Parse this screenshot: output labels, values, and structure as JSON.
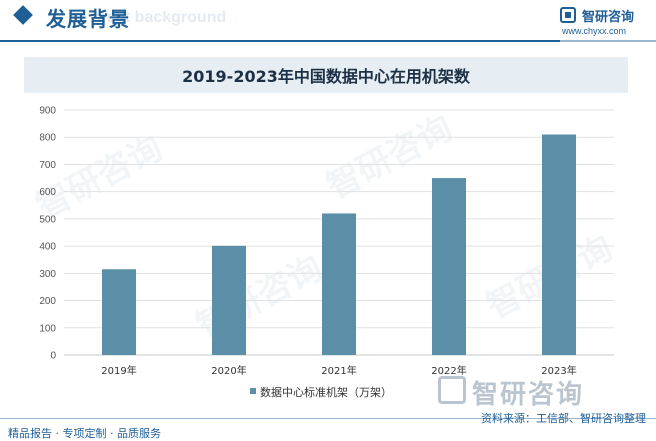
{
  "header": {
    "title": "发展背景",
    "subtitle": "ment background"
  },
  "brand": {
    "name": "智研咨询",
    "url": "www.chyxx.com"
  },
  "watermark_text": "智研咨询",
  "chart_data": {
    "type": "bar",
    "title": "2019-2023年中国数据中心在用机架数",
    "categories": [
      "2019年",
      "2020年",
      "2021年",
      "2022年",
      "2023年"
    ],
    "series": [
      {
        "name": "数据中心标准机架（万架）",
        "values": [
          315,
          401,
          520,
          650,
          810
        ],
        "color": "#5b8fa8"
      }
    ],
    "ylim": [
      0,
      900
    ],
    "yticks": [
      0,
      100,
      200,
      300,
      400,
      500,
      600,
      700,
      800,
      900
    ],
    "grid": true,
    "legend": "bottom"
  },
  "footer": {
    "left": "精品报告 · 专项定制 · 品质服务",
    "source": "资料来源：工信部、智研咨询整理"
  }
}
